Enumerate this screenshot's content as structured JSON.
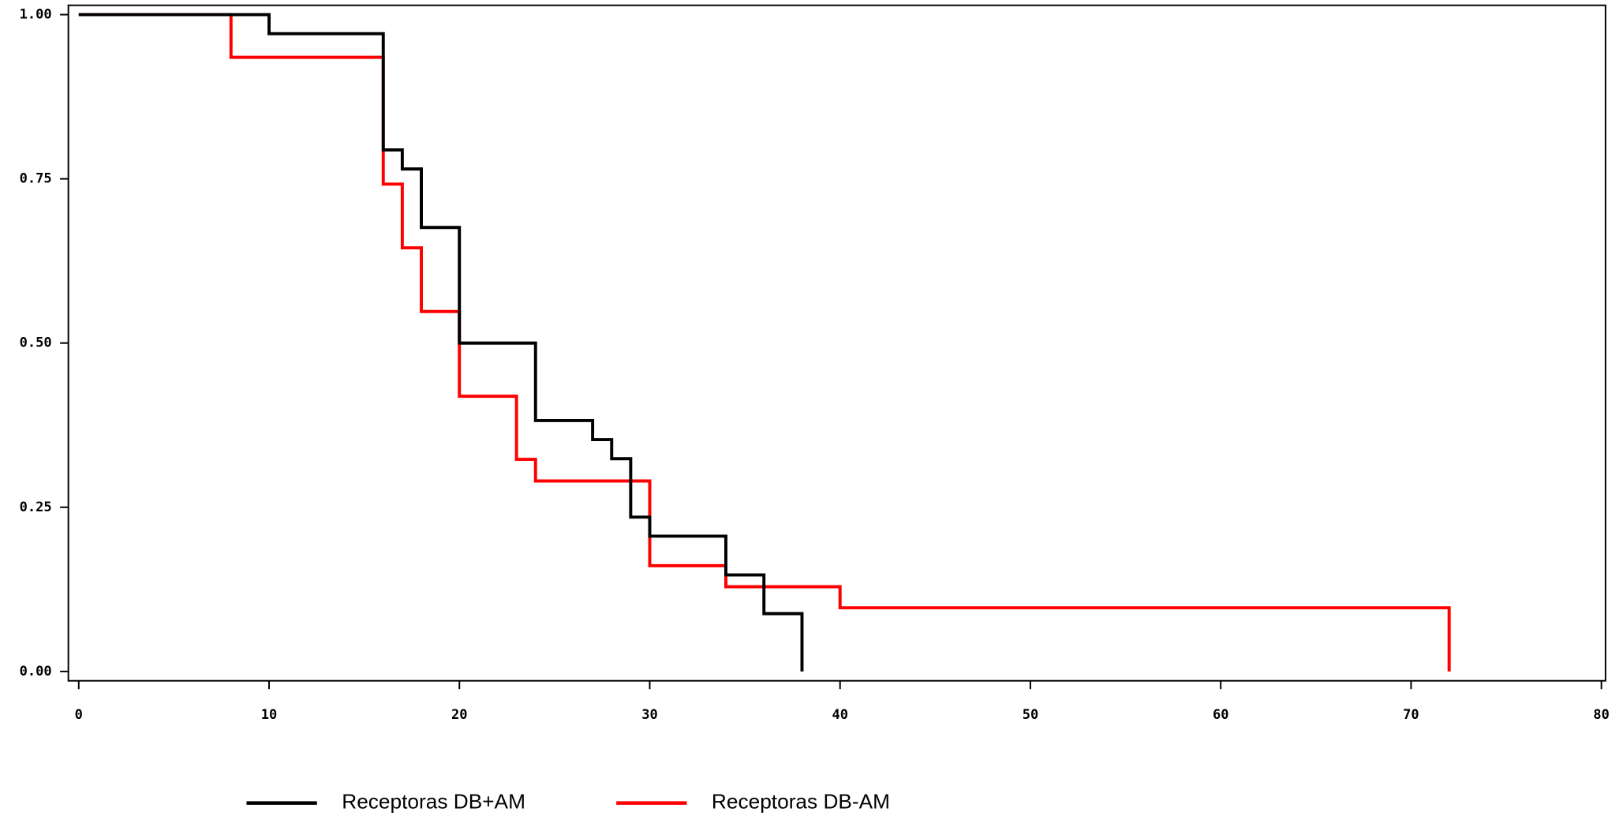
{
  "chart_data": {
    "type": "step",
    "xlim": [
      0,
      80
    ],
    "xticks": [
      0,
      10,
      20,
      30,
      40,
      50,
      60,
      70,
      80
    ],
    "ylim": [
      0,
      1
    ],
    "yticks": [
      {
        "value": 0,
        "label": "0.00"
      },
      {
        "value": 0.25,
        "label": "0.25"
      },
      {
        "value": 0.5,
        "label": "0.50"
      },
      {
        "value": 0.75,
        "label": "0.75"
      },
      {
        "value": 1,
        "label": "1.00"
      }
    ],
    "series": [
      {
        "name": "Receptoras DB+AM",
        "color": "#000000",
        "x": [
          0,
          10,
          16,
          17,
          18,
          20,
          24,
          27,
          28,
          29,
          30,
          34,
          36,
          38
        ],
        "values": [
          1.0,
          0.971,
          0.794,
          0.765,
          0.676,
          0.5,
          0.382,
          0.353,
          0.324,
          0.235,
          0.206,
          0.147,
          0.088,
          0
        ]
      },
      {
        "name": "Receptoras DB-AM",
        "color": "#ff0000",
        "x": [
          0,
          8,
          16,
          17,
          18,
          20,
          23,
          24,
          30,
          34,
          40,
          72
        ],
        "values": [
          1.0,
          0.935,
          0.742,
          0.645,
          0.548,
          0.419,
          0.323,
          0.29,
          0.161,
          0.129,
          0.097,
          0
        ]
      }
    ]
  }
}
